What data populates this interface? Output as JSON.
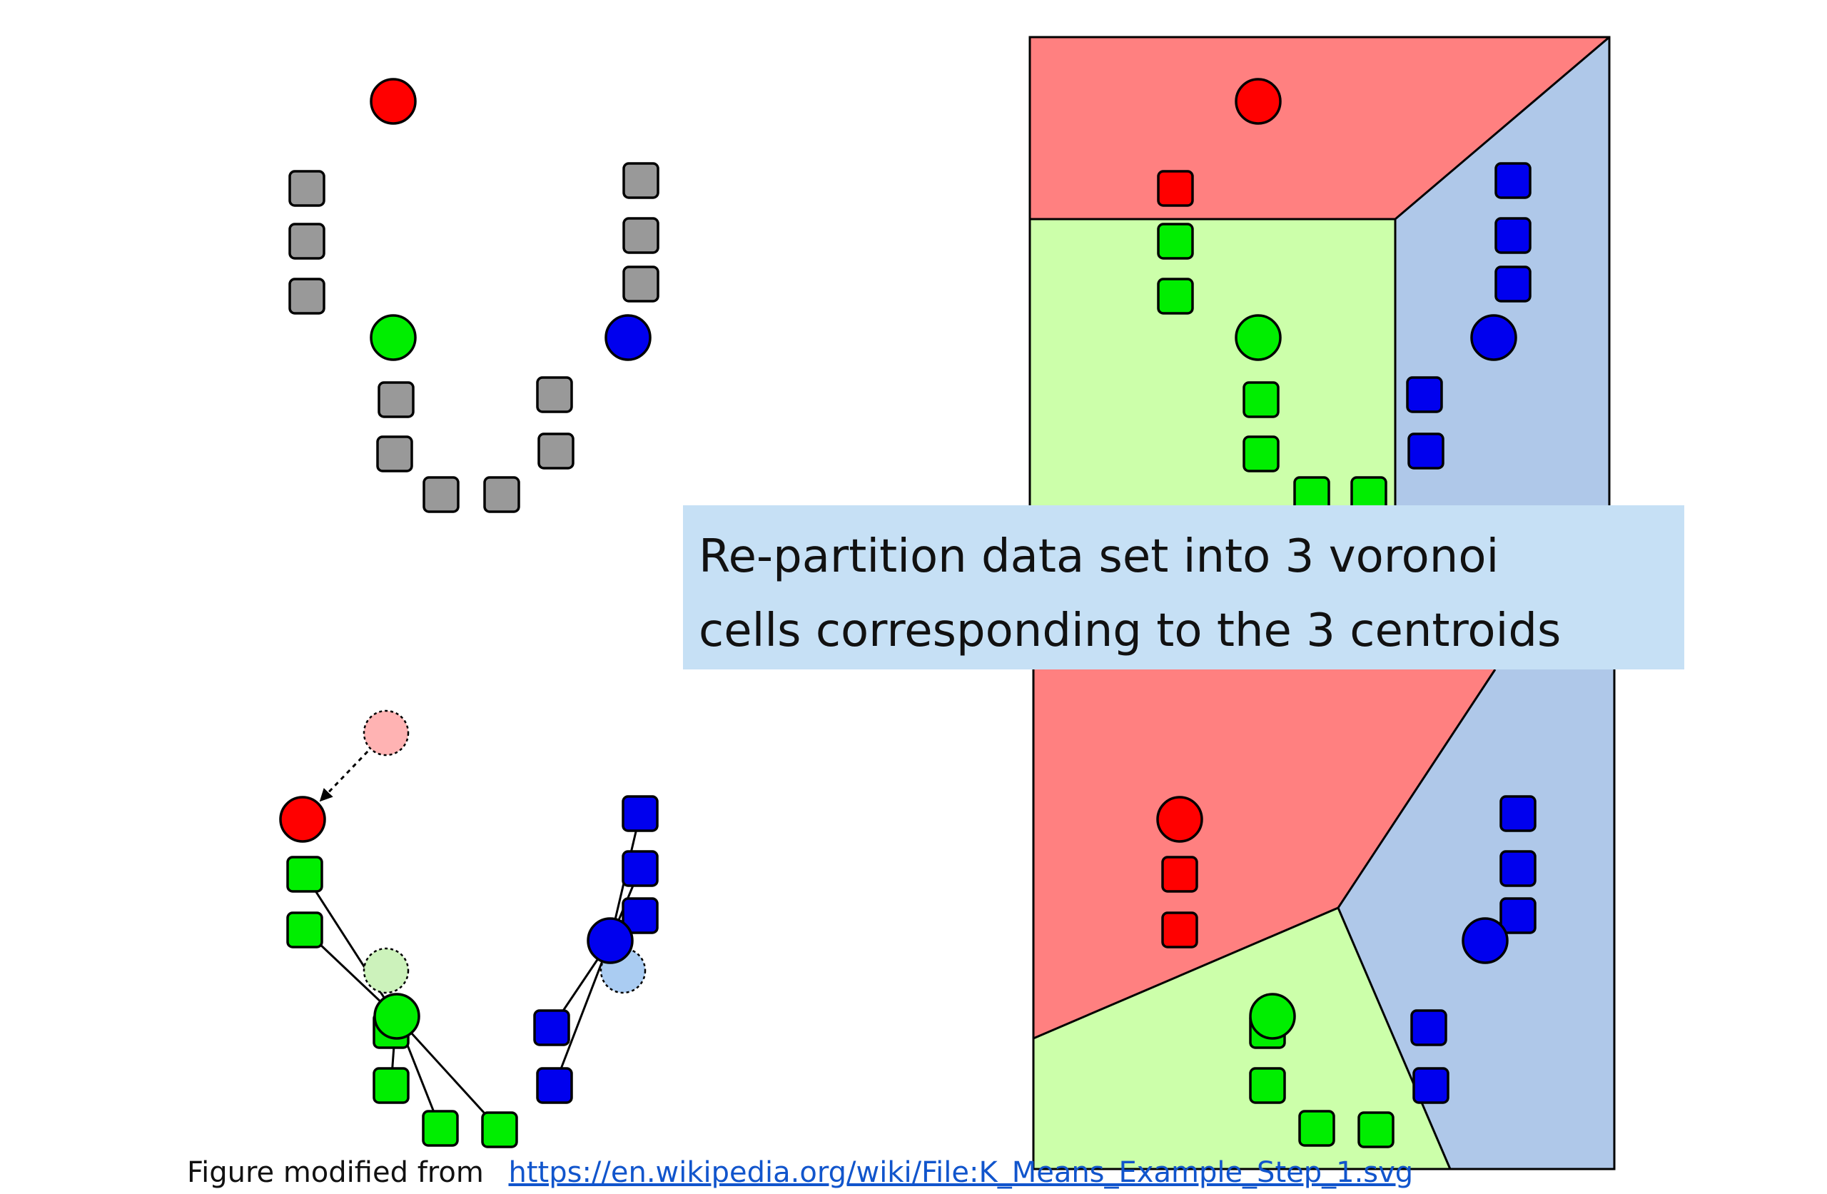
{
  "callout": {
    "line1": "Re-partition data set into 3 voronoi",
    "line2": "cells corresponding to the 3 centroids"
  },
  "caption": {
    "prefix": "Figure modified from",
    "link_text": "https://en.wikipedia.org/wiki/File:K_Means_Example_Step_1.svg"
  },
  "colors": {
    "red": "#ff0000",
    "green": "#00ee00",
    "blue": "#0000ee",
    "unassigned": "#999999",
    "region_red": "#ff8080",
    "region_green": "#ccffaa",
    "region_blue": "#afc8e9",
    "ghost_red": "#ffb3b3",
    "ghost_green": "#ccf2bb",
    "ghost_blue": "#aaccf2",
    "callout_bg": "#c6e0f5",
    "link": "#1155cc"
  },
  "panels": [
    {
      "name": "initial-centroids",
      "step": "initialize 3 centroids; points unassigned"
    },
    {
      "name": "voronoi-assignment-top",
      "step": "assign points to nearest centroid"
    },
    {
      "name": "centroid-update",
      "step": "move centroids to cluster means"
    },
    {
      "name": "voronoi-assignment-bottom",
      "step": "re-partition into voronoi cells"
    }
  ]
}
